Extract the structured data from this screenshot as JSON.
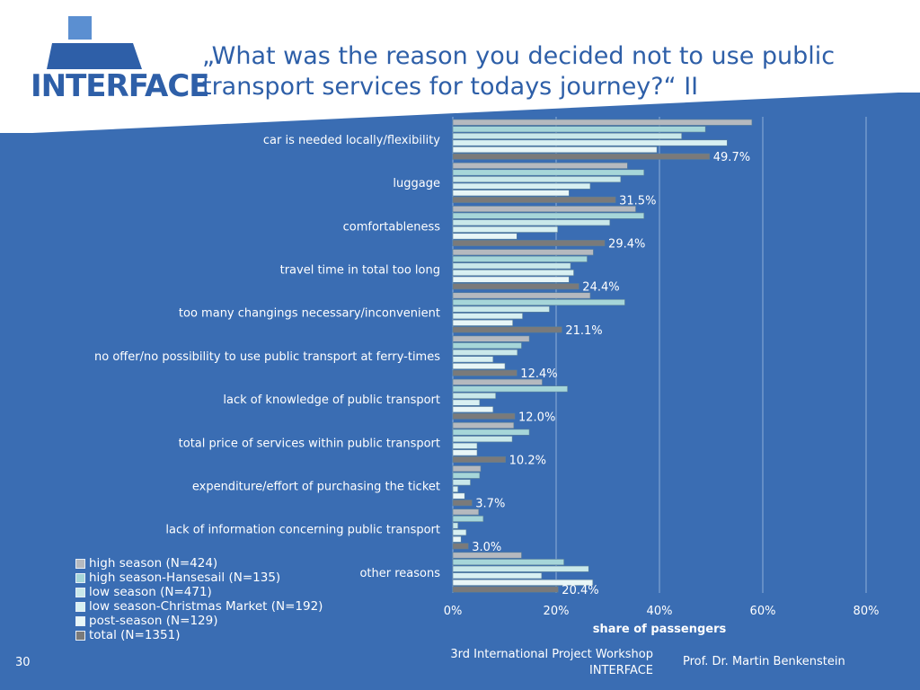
{
  "logo": {
    "text": "INTERFACE",
    "colors": {
      "primary": "#2e5fa8",
      "secondary": "#5b8fd1"
    }
  },
  "title": "„What was the reason you decided not to use public transport services for todays journey?“ II",
  "chart_data": {
    "type": "bar",
    "orientation": "horizontal",
    "categories": [
      "car is needed locally/flexibility",
      "luggage",
      "comfortableness",
      "travel time in total too long",
      "too many changings necessary/inconvenient",
      "no offer/no possibility to use public transport at ferry-times",
      "lack of knowledge of public transport",
      "total price of services within public transport",
      "expenditure/effort of purchasing the ticket",
      "lack of information concerning public transport",
      "other reasons"
    ],
    "series": [
      {
        "name": "high season (N=424)",
        "color": "#b5b9bf",
        "values": [
          57.9,
          33.8,
          35.4,
          27.2,
          26.6,
          14.8,
          17.3,
          11.8,
          5.4,
          5.0,
          13.3
        ]
      },
      {
        "name": "high season-Hansesail (N=135)",
        "color": "#a6d6d9",
        "values": [
          48.9,
          37.0,
          37.0,
          26.0,
          33.3,
          13.3,
          22.2,
          14.8,
          5.2,
          5.9,
          21.5
        ]
      },
      {
        "name": "low season (N=471)",
        "color": "#c9e8ea",
        "values": [
          44.3,
          32.5,
          30.4,
          22.8,
          18.7,
          12.5,
          8.3,
          11.5,
          3.4,
          1.0,
          26.3
        ]
      },
      {
        "name": "low season-Christmas Market (N=192)",
        "color": "#d8f0f2",
        "values": [
          53.1,
          26.6,
          20.3,
          23.4,
          13.5,
          7.8,
          5.2,
          4.7,
          1.0,
          2.6,
          17.2
        ]
      },
      {
        "name": "post-season (N=129)",
        "color": "#e8f6f7",
        "values": [
          39.5,
          22.5,
          12.4,
          22.5,
          11.6,
          10.1,
          7.8,
          4.7,
          2.3,
          1.6,
          27.1
        ]
      },
      {
        "name": "total (N=1351)",
        "color": "#7a7a7a",
        "values": [
          49.7,
          31.5,
          29.4,
          24.4,
          21.1,
          12.4,
          12.0,
          10.2,
          3.7,
          3.0,
          20.4
        ]
      }
    ],
    "data_labels": [
      "49.7%",
      "31.5%",
      "29.4%",
      "24.4%",
      "21.1%",
      "12.4%",
      "12.0%",
      "10.2%",
      "3.7%",
      "3.0%",
      "20.4%"
    ],
    "xlim": [
      0,
      80
    ],
    "xticks": [
      "0%",
      "20%",
      "40%",
      "60%",
      "80%"
    ],
    "xlabel": "share of passengers",
    "grid": true,
    "legend": "bottom-left"
  },
  "footer": {
    "slide_number": "30",
    "event_line1": "3rd International Project Workshop",
    "event_line2": "INTERFACE",
    "author": "Prof. Dr. Martin Benkenstein"
  },
  "theme": {
    "panel_color": "#3a6db3",
    "bar_border": "#5a7f99"
  }
}
